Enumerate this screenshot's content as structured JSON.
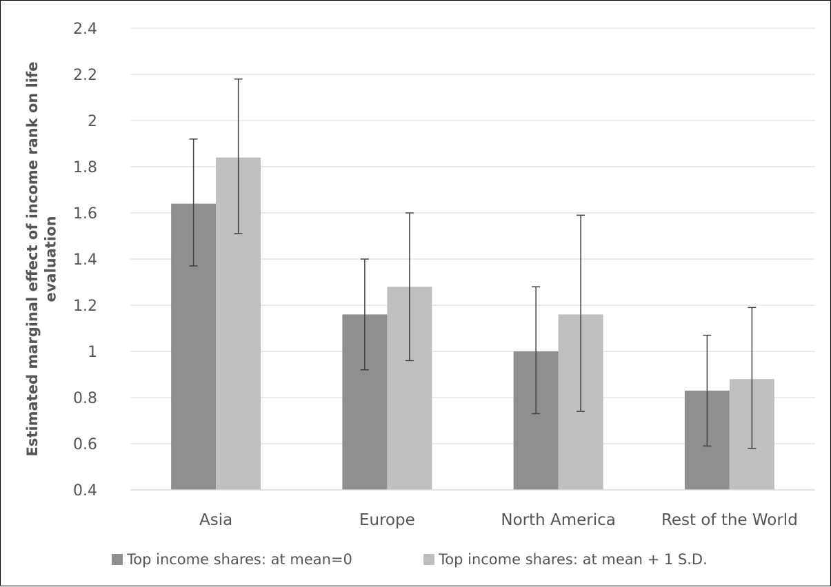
{
  "chart_data": {
    "type": "bar",
    "title": "",
    "xlabel": "",
    "ylabel_lines": [
      "Estimated marginal effect of income rank on life",
      "evaluation"
    ],
    "ylim": [
      0.4,
      2.4
    ],
    "yticks": [
      "0.4",
      "0.6",
      "0.8",
      "1",
      "1.2",
      "1.4",
      "1.6",
      "1.8",
      "2",
      "2.2",
      "2.4"
    ],
    "categories": [
      "Asia",
      "Europe",
      "North America",
      "Rest of the World"
    ],
    "series": [
      {
        "name": "Top income shares: at mean=0",
        "color": "#8f8f8f",
        "values": [
          1.64,
          1.16,
          1.0,
          0.83
        ],
        "err_low": [
          1.37,
          0.92,
          0.73,
          0.59
        ],
        "err_high": [
          1.92,
          1.4,
          1.28,
          1.07
        ]
      },
      {
        "name": "Top income shares: at mean + 1 S.D.",
        "color": "#bfbfbf",
        "values": [
          1.84,
          1.28,
          1.16,
          0.88
        ],
        "err_low": [
          1.51,
          0.96,
          0.74,
          0.58
        ],
        "err_high": [
          2.18,
          1.6,
          1.59,
          1.19
        ]
      }
    ],
    "grid": true,
    "legend_position": "bottom"
  }
}
